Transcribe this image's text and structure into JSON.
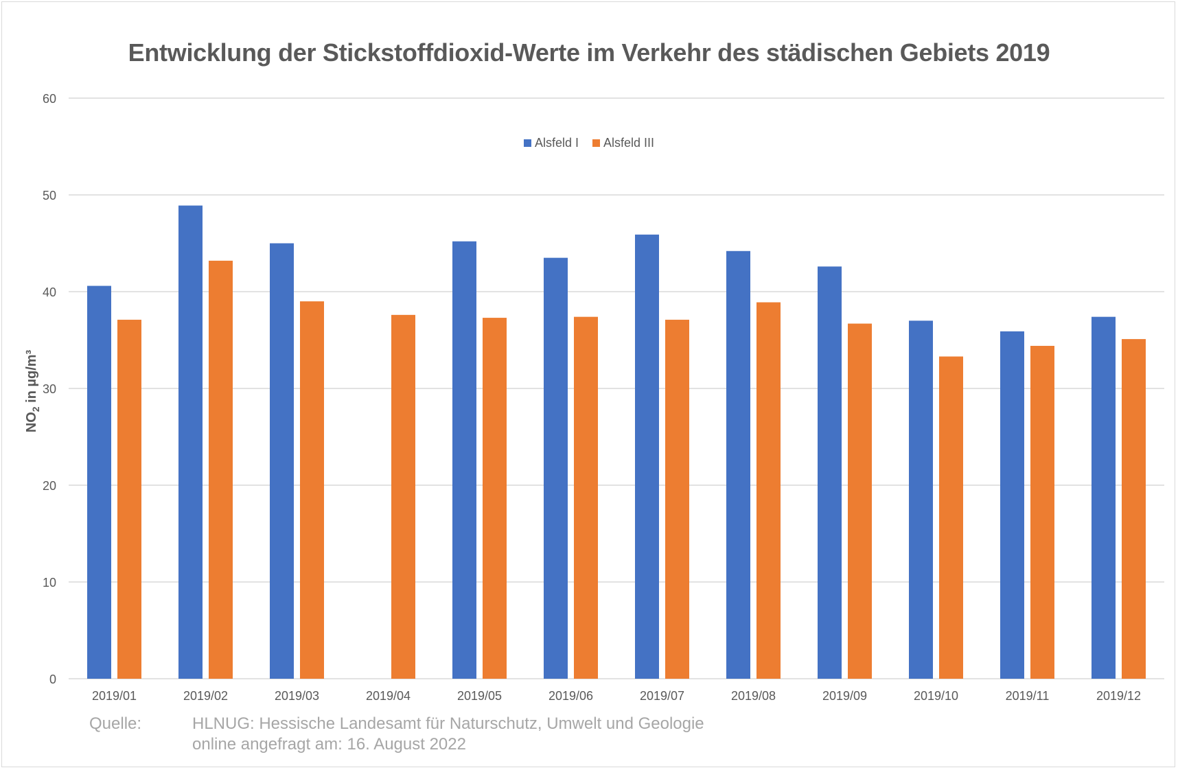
{
  "chart_data": {
    "type": "bar",
    "title": "Entwicklung der Stickstoffdioxid-Werte im Verkehr des städischen Gebiets 2019",
    "ylabel_main": "NO",
    "ylabel_sub": "2",
    "ylabel_rest": " in µg/m³",
    "categories": [
      "2019/01",
      "2019/02",
      "2019/03",
      "2019/04",
      "2019/05",
      "2019/06",
      "2019/07",
      "2019/08",
      "2019/09",
      "2019/10",
      "2019/11",
      "2019/12"
    ],
    "series": [
      {
        "name": "Alsfeld I",
        "color": "#4472c4",
        "values": [
          40.6,
          48.9,
          45.0,
          null,
          45.2,
          43.5,
          45.9,
          44.2,
          42.6,
          37.0,
          35.9,
          37.4
        ]
      },
      {
        "name": "Alsfeld III",
        "color": "#ed7d31",
        "values": [
          37.1,
          43.2,
          39.0,
          37.6,
          37.3,
          37.4,
          37.1,
          38.9,
          36.7,
          33.3,
          34.4,
          35.1
        ]
      }
    ],
    "ylim": [
      0,
      60
    ],
    "yticks": [
      0,
      10,
      20,
      30,
      40,
      50,
      60
    ],
    "grid": true,
    "legend_position": "top-center"
  },
  "source": {
    "label": "Quelle:",
    "line1": "HLNUG: Hessische Landesamt für Naturschutz, Umwelt und Geologie",
    "line2": "online angefragt am: 16. August 2022"
  }
}
